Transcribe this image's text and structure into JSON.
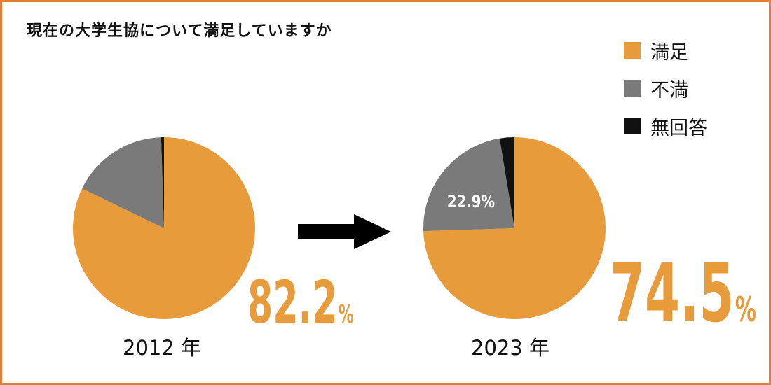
{
  "title": "現在の大学生協について満足していますか",
  "colors": {
    "satisfied": "#e79b3a",
    "dissatisfied": "#7a7a7a",
    "no_answer": "#111111",
    "border": "#e07f3a",
    "arrow": "#000000"
  },
  "legend": [
    {
      "label": "満足",
      "color": "#e79b3a"
    },
    {
      "label": "不満",
      "color": "#7a7a7a"
    },
    {
      "label": "無回答",
      "color": "#111111"
    }
  ],
  "chart_data": [
    {
      "type": "pie",
      "title": "2012 年",
      "categories": [
        "満足",
        "不満",
        "無回答"
      ],
      "values": [
        82.2,
        17.3,
        0.5
      ],
      "labels": {
        "highlight_value": "82.2",
        "highlight_unit": "%"
      }
    },
    {
      "type": "pie",
      "title": "2023 年",
      "categories": [
        "満足",
        "不満",
        "無回答"
      ],
      "values": [
        74.5,
        22.9,
        2.6
      ],
      "labels": {
        "highlight_value": "74.5",
        "highlight_unit": "%",
        "secondary_label": "22.9%"
      }
    }
  ]
}
